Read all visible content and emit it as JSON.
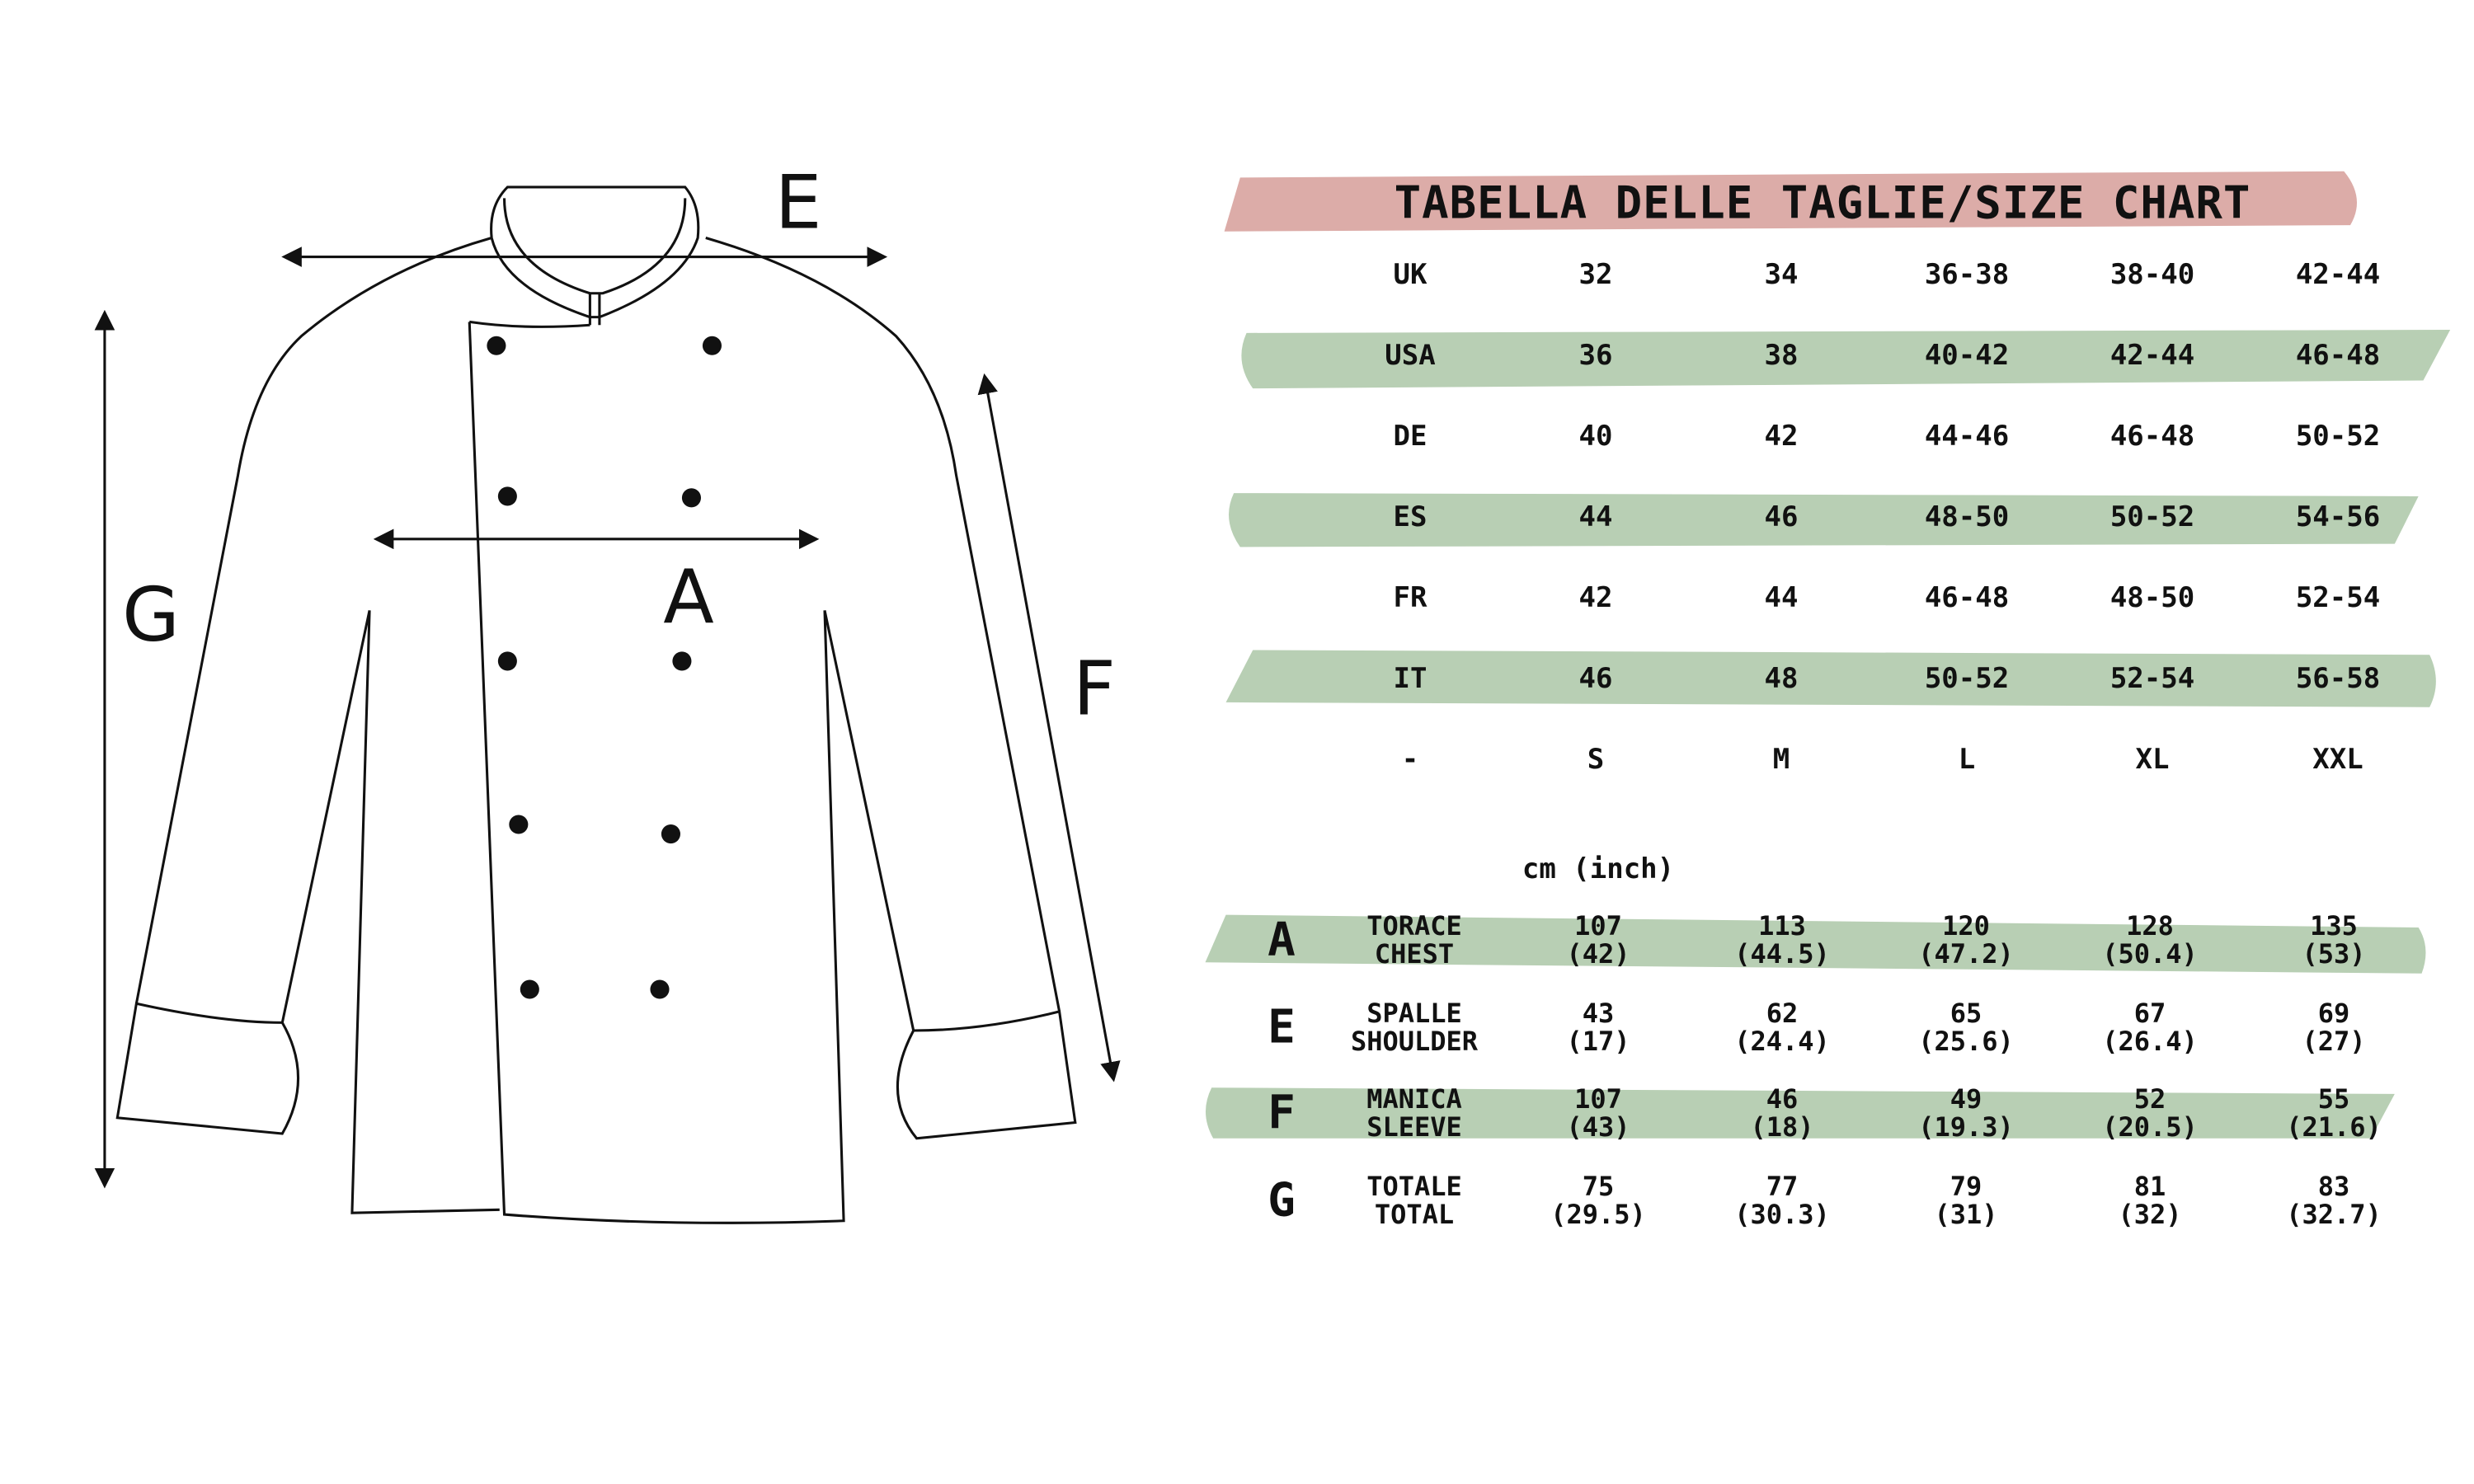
{
  "title": "TABELLA DELLE TAGLIE/SIZE CHART",
  "colors": {
    "title_band": "#dcaca8",
    "row_band": "#b8cfb4",
    "ink": "#111111"
  },
  "diagram_labels": {
    "A": "A",
    "E": "E",
    "F": "F",
    "G": "G"
  },
  "conversion_rows": [
    {
      "label": "UK",
      "values": [
        "32",
        "34",
        "36-38",
        "38-40",
        "42-44"
      ]
    },
    {
      "label": "USA",
      "values": [
        "36",
        "38",
        "40-42",
        "42-44",
        "46-48"
      ]
    },
    {
      "label": "DE",
      "values": [
        "40",
        "42",
        "44-46",
        "46-48",
        "50-52"
      ]
    },
    {
      "label": "ES",
      "values": [
        "44",
        "46",
        "48-50",
        "50-52",
        "54-56"
      ]
    },
    {
      "label": "FR",
      "values": [
        "42",
        "44",
        "46-48",
        "48-50",
        "52-54"
      ]
    },
    {
      "label": "IT",
      "values": [
        "46",
        "48",
        "50-52",
        "52-54",
        "56-58"
      ]
    },
    {
      "label": "-",
      "values": [
        "S",
        "M",
        "L",
        "XL",
        "XXL"
      ]
    }
  ],
  "unit_label": "cm (inch)",
  "measure_rows": [
    {
      "letter": "A",
      "label_it": "TORACE",
      "label_en": "CHEST",
      "cm": [
        "107",
        "113",
        "120",
        "128",
        "135"
      ],
      "inch": [
        "(42)",
        "(44.5)",
        "(47.2)",
        "(50.4)",
        "(53)"
      ]
    },
    {
      "letter": "E",
      "label_it": "SPALLE",
      "label_en": "SHOULDER",
      "cm": [
        "43",
        "62",
        "65",
        "67",
        "69"
      ],
      "inch": [
        "(17)",
        "(24.4)",
        "(25.6)",
        "(26.4)",
        "(27)"
      ]
    },
    {
      "letter": "F",
      "label_it": "MANICA",
      "label_en": "SLEEVE",
      "cm": [
        "107",
        "46",
        "49",
        "52",
        "55"
      ],
      "inch": [
        "(43)",
        "(18)",
        "(19.3)",
        "(20.5)",
        "(21.6)"
      ]
    },
    {
      "letter": "G",
      "label_it": "TOTALE",
      "label_en": "TOTAL",
      "cm": [
        "75",
        "77",
        "79",
        "81",
        "83"
      ],
      "inch": [
        "(29.5)",
        "(30.3)",
        "(31)",
        "(32)",
        "(32.7)"
      ]
    }
  ]
}
